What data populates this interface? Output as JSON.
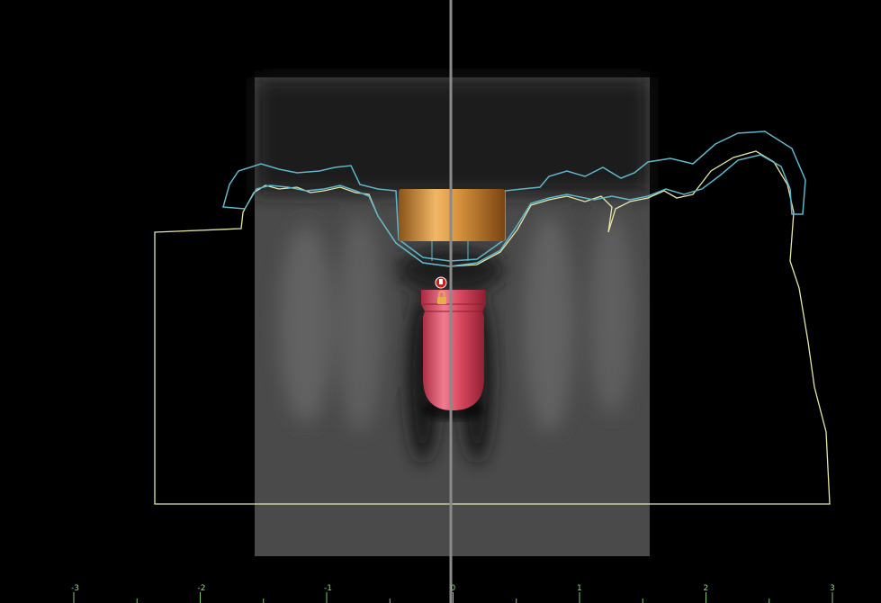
{
  "ruler": {
    "labels": [
      "-3",
      "-2",
      "-1",
      "0",
      "1",
      "2",
      "3"
    ]
  }
}
